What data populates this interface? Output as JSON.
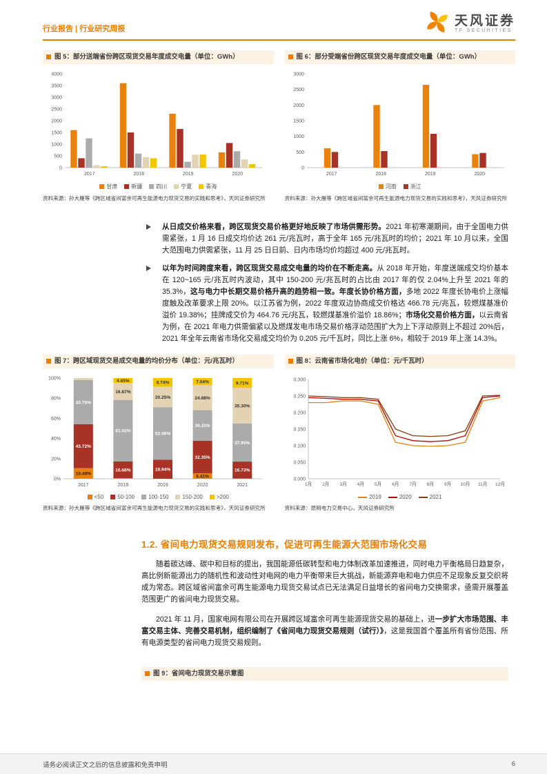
{
  "header": {
    "breadcrumb": "行业报告 | 行业研究周报",
    "brand": "天风证券",
    "brand_sub": "TF SECURITIES"
  },
  "colors": {
    "accent": "#E87E04",
    "series_orange": "#E8820C",
    "series_darkred": "#A93226",
    "series_gray": "#ABABAB",
    "series_tan": "#E3D3B2",
    "series_yellow": "#F2C500",
    "title_bar_bg": "#FCF2E4"
  },
  "figures": {
    "fig5": {
      "title": "图 5：部分送端省份跨区现货交易年度成交电量（单位：GWh）",
      "source": "资料来源：孙大雁等《跨区域省间富余可再生能源电力现货交易的实践和思考》，天风证券研究所"
    },
    "fig6": {
      "title": "图 6：部分受端省份跨区现货交易年度成交电量（单位：GWh）",
      "source": "资料来源：孙大雁等《跨区域省间富余可再生能源电力现货交易的实践和思考》，天风证券研究所"
    },
    "fig7": {
      "title": "图 7：跨区域现货交易成交电量的均价分布（单位：元/兆瓦时）",
      "source": "资料来源：孙大雁等《跨区域省间富余可再生能源电力现货交易的实践和思考》，天风证券研究所"
    },
    "fig8": {
      "title": "图 8：云南省市场化电价（单位：元/千瓦时）",
      "source": "资料来源：昆明电力交易中心，天风证券研究所"
    },
    "fig9": {
      "title": "图 9：省间电力现货交易示意图"
    }
  },
  "bullets": [
    {
      "segments": [
        {
          "text": "从日成交价格来看，跨区现货交易价格更好地反映了市场供需形势。",
          "bold": true
        },
        {
          "text": "2021 年初寒潮期间，由于全国电力供需紧张，1 月 16 日成交均价达 261 元/兆瓦时，高于全年 165 元/兆瓦时的均价；2021 年 10 月以来，全国大范围电力供需紧张，11 月 25 日日前、日内市场均价均超过 400 元/兆瓦时。",
          "bold": false
        }
      ]
    },
    {
      "segments": [
        {
          "text": "以年为时间跨度来看，跨区现货交易成交电量的均价在不断走高。",
          "bold": true
        },
        {
          "text": "从 2018 年开始，年度送端成交均价基本在 120~165 元/兆瓦时内波动，其中 150-200 元/兆瓦时的占比由 2017 年的仅 2.04%上升至 2021 年的 35.3%，",
          "bold": false
        },
        {
          "text": "这与电力中长期交易价格升高的趋势相一致。年度长协价格方面，",
          "bold": true
        },
        {
          "text": "多地 2022 年度长协电价上涨幅度触及改革要求上限 20%。以江苏省为例，2022 年度双边协商成交价格达 466.78 元/兆瓦，较燃煤基准价溢价 19.38%；挂牌成交价为 464.76 元/兆瓦，较燃煤基准价溢价 18.86%；",
          "bold": false
        },
        {
          "text": "市场化交易价格方面，",
          "bold": true
        },
        {
          "text": "以云南省为例，在 2021 年电力供需偏紧以及燃煤发电市场交易价格浮动范围扩大为上下浮动原则上不超过 20%后，2021 年全年云南省市场化交易成交均价为 0.205 元/千瓦时，同比上涨 6%，相较于 2019 年上涨 14.3%。",
          "bold": false
        }
      ]
    }
  ],
  "section": {
    "heading": "1.2. 省间电力现货交易规则发布，促进可再生能源大范围市场化交易",
    "paragraphs": [
      {
        "segments": [
          {
            "text": "随着碳达峰、碳中和目标的提出，我国能源低碳转型和电力体制改革加速推进，同时电力平衡格局日趋复杂，高比例新能源出力的随机性和波动性对电网的电力平衡带来巨大挑战，新能源弃电和电力供应不足现象反复交织将成为常态。跨区域省间富余可再生能源电力现货交易试点已无法满足日益增长的省间电力交换需求，亟需开展覆盖范围更广的省间电力现货交易。",
            "bold": false
          }
        ]
      },
      {
        "segments": [
          {
            "text": "2021 年 11 月，国家电网有限公司在开展跨区域富余可再生能源现货交易的基础上，进",
            "bold": false
          },
          {
            "text": "一步扩大市场范围、丰富交易主体、完善交易机制，组织编制了《省间电力现货交易规则（试行）》",
            "bold": true
          },
          {
            "text": "，这是我国首个覆盖所有省份范围、所有电源类型的省间电力现货交易规则。",
            "bold": false
          }
        ]
      }
    ]
  },
  "footer": {
    "disclaimer": "请务必阅读正文之后的信息披露和免责申明",
    "page_number": "6"
  },
  "chart_data": [
    {
      "id": "chart5",
      "type": "bar",
      "title": "部分送端省份跨区现货交易年度成交电量（单位：GWh）",
      "categories": [
        "2017",
        "2018",
        "2019",
        "2020"
      ],
      "series": [
        {
          "name": "甘肃",
          "color": "#E8820C",
          "values": [
            1600,
            3600,
            2300,
            650
          ]
        },
        {
          "name": "新疆",
          "color": "#A93226",
          "values": [
            400,
            1500,
            1650,
            1050
          ]
        },
        {
          "name": "四川",
          "color": "#ABABAB",
          "values": [
            1250,
            600,
            250,
            700
          ]
        },
        {
          "name": "宁夏",
          "color": "#E3D3B2",
          "values": [
            100,
            450,
            550,
            350
          ]
        },
        {
          "name": "青海",
          "color": "#F2C500",
          "values": [
            60,
            400,
            560,
            150
          ]
        }
      ],
      "ylim": [
        0,
        4000
      ],
      "ytick": 500,
      "ytick_format": "int",
      "grid": false,
      "legend_position": "bottom"
    },
    {
      "id": "chart6",
      "type": "bar",
      "title": "部分受端省份跨区现货交易年度成交电量（单位：GWh）",
      "categories": [
        "2017",
        "2018",
        "2019",
        "2020"
      ],
      "series": [
        {
          "name": "河南",
          "color": "#E8820C",
          "values": [
            620,
            2000,
            2650,
            430
          ]
        },
        {
          "name": "浙江",
          "color": "#A93226",
          "values": [
            500,
            530,
            1080,
            470
          ]
        }
      ],
      "ylim": [
        0,
        3000
      ],
      "ytick": 500,
      "ytick_format": "int",
      "grid": false,
      "legend_position": "bottom"
    },
    {
      "id": "chart7",
      "type": "stacked_bar_percent",
      "title": "跨区域现货交易成交电量的均价分布（单位：元/兆瓦时）",
      "categories": [
        "2017",
        "2018",
        "2019",
        "2020",
        "2021"
      ],
      "series": [
        {
          "name": "<50",
          "color": "#E8820C",
          "label_color": "#222222",
          "values": [
            10.48,
            0.6,
            0.05,
            5.41,
            0.31
          ]
        },
        {
          "name": "50-100",
          "color": "#A93226",
          "label_color": "#ffffff",
          "values": [
            43.72,
            16.66,
            18.94,
            32.35,
            16.73
          ]
        },
        {
          "name": "100-150",
          "color": "#ABABAB",
          "label_color": "#ffffff",
          "values": [
            43.75,
            61.02,
            52.08,
            30.31,
            37.95
          ]
        },
        {
          "name": "150-200",
          "color": "#E3D3B2",
          "label_color": "#333333",
          "values": [
            2.04,
            16.87,
            20.25,
            24.88,
            35.3
          ]
        },
        {
          "name": ">200",
          "color": "#F2C500",
          "label_color": "#333333",
          "values": [
            0.01,
            4.85,
            8.74,
            7.04,
            9.71
          ]
        }
      ],
      "ylim": [
        0,
        100
      ],
      "ytick": 20,
      "ytick_format": "pct",
      "label_min": 4.5,
      "grid": false,
      "legend_position": "bottom"
    },
    {
      "id": "chart8",
      "type": "line",
      "title": "云南省市场化电价（单位：元/千瓦时）",
      "x": [
        "1月",
        "2月",
        "3月",
        "4月",
        "5月",
        "6月",
        "7月",
        "8月",
        "9月",
        "10月",
        "11月",
        "12月"
      ],
      "series": [
        {
          "name": "2019",
          "color": "#E8820C",
          "values": [
            0.23,
            0.23,
            0.235,
            0.235,
            0.225,
            0.11,
            0.1,
            0.098,
            0.1,
            0.11,
            0.235,
            0.245
          ]
        },
        {
          "name": "2020",
          "color": "#C00000",
          "values": [
            0.245,
            0.243,
            0.24,
            0.24,
            0.235,
            0.13,
            0.115,
            0.112,
            0.115,
            0.13,
            0.245,
            0.25
          ]
        },
        {
          "name": "2021",
          "color": "#843C0C",
          "values": [
            0.25,
            0.248,
            0.245,
            0.245,
            0.24,
            0.15,
            0.13,
            0.128,
            0.13,
            0.145,
            0.25,
            0.252
          ]
        }
      ],
      "ylim": [
        0,
        0.3
      ],
      "ytick": 0.05,
      "ytick_format": "dec3",
      "grid": false,
      "legend_position": "bottom"
    }
  ]
}
